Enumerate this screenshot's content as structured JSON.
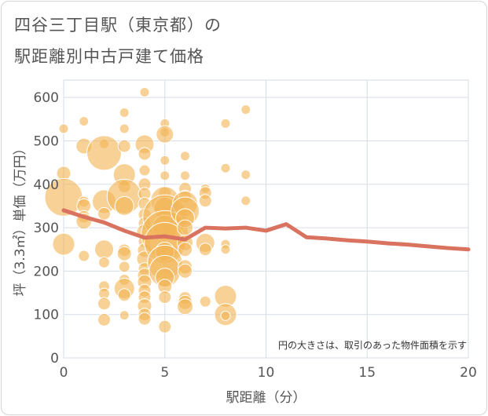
{
  "title": {
    "line1": "四谷三丁目駅（東京都）の",
    "line2": "駅距離別中古戸建て価格"
  },
  "chart_data": {
    "type": "scatter",
    "xlabel": "駅距離（分）",
    "ylabel": "坪（3.3㎡）単価（万円）",
    "xlim": [
      0,
      20
    ],
    "ylim": [
      0,
      640
    ],
    "x_ticks": [
      0,
      5,
      10,
      15,
      20
    ],
    "y_ticks": [
      0,
      100,
      200,
      300,
      400,
      500,
      600
    ],
    "grid": true,
    "annotation": "円の大きさは、取引のあった物件面積を示す",
    "colors": {
      "bubble": "#f2b555",
      "line": "#d9725e",
      "grid": "#d6dde6"
    },
    "bubbles": [
      {
        "x": 0,
        "y": 528,
        "s": 6
      },
      {
        "x": 0,
        "y": 425,
        "s": 9
      },
      {
        "x": 0,
        "y": 370,
        "s": 24
      },
      {
        "x": 0,
        "y": 262,
        "s": 14
      },
      {
        "x": 1,
        "y": 545,
        "s": 6
      },
      {
        "x": 1,
        "y": 488,
        "s": 10
      },
      {
        "x": 1,
        "y": 360,
        "s": 7
      },
      {
        "x": 1,
        "y": 350,
        "s": 9
      },
      {
        "x": 1,
        "y": 325,
        "s": 8
      },
      {
        "x": 1,
        "y": 315,
        "s": 10
      },
      {
        "x": 1,
        "y": 235,
        "s": 7
      },
      {
        "x": 2,
        "y": 493,
        "s": 6
      },
      {
        "x": 2,
        "y": 472,
        "s": 22
      },
      {
        "x": 2,
        "y": 360,
        "s": 15
      },
      {
        "x": 2,
        "y": 332,
        "s": 8
      },
      {
        "x": 2,
        "y": 250,
        "s": 12
      },
      {
        "x": 2,
        "y": 220,
        "s": 7
      },
      {
        "x": 2,
        "y": 165,
        "s": 7
      },
      {
        "x": 2,
        "y": 148,
        "s": 7
      },
      {
        "x": 2,
        "y": 125,
        "s": 8
      },
      {
        "x": 2,
        "y": 88,
        "s": 8
      },
      {
        "x": 3,
        "y": 565,
        "s": 6
      },
      {
        "x": 3,
        "y": 528,
        "s": 6
      },
      {
        "x": 3,
        "y": 488,
        "s": 8
      },
      {
        "x": 3,
        "y": 422,
        "s": 14
      },
      {
        "x": 3,
        "y": 395,
        "s": 8
      },
      {
        "x": 3,
        "y": 372,
        "s": 22
      },
      {
        "x": 3,
        "y": 350,
        "s": 12
      },
      {
        "x": 3,
        "y": 248,
        "s": 8
      },
      {
        "x": 3,
        "y": 240,
        "s": 9
      },
      {
        "x": 3,
        "y": 210,
        "s": 7
      },
      {
        "x": 3,
        "y": 180,
        "s": 7
      },
      {
        "x": 3,
        "y": 160,
        "s": 13
      },
      {
        "x": 3,
        "y": 145,
        "s": 8
      },
      {
        "x": 3,
        "y": 98,
        "s": 6
      },
      {
        "x": 4,
        "y": 612,
        "s": 6
      },
      {
        "x": 4,
        "y": 492,
        "s": 12
      },
      {
        "x": 4,
        "y": 470,
        "s": 8
      },
      {
        "x": 4,
        "y": 432,
        "s": 7
      },
      {
        "x": 4,
        "y": 400,
        "s": 8
      },
      {
        "x": 4,
        "y": 378,
        "s": 8
      },
      {
        "x": 4,
        "y": 355,
        "s": 8
      },
      {
        "x": 4,
        "y": 330,
        "s": 8
      },
      {
        "x": 4,
        "y": 310,
        "s": 8
      },
      {
        "x": 4,
        "y": 290,
        "s": 10
      },
      {
        "x": 4,
        "y": 268,
        "s": 8
      },
      {
        "x": 4,
        "y": 248,
        "s": 9
      },
      {
        "x": 4,
        "y": 228,
        "s": 10
      },
      {
        "x": 4,
        "y": 205,
        "s": 8
      },
      {
        "x": 4,
        "y": 190,
        "s": 9
      },
      {
        "x": 4,
        "y": 175,
        "s": 9
      },
      {
        "x": 4,
        "y": 155,
        "s": 8
      },
      {
        "x": 4,
        "y": 140,
        "s": 8
      },
      {
        "x": 4,
        "y": 120,
        "s": 9
      },
      {
        "x": 4,
        "y": 100,
        "s": 8
      },
      {
        "x": 4,
        "y": 90,
        "s": 8
      },
      {
        "x": 5,
        "y": 540,
        "s": 6
      },
      {
        "x": 5,
        "y": 520,
        "s": 6
      },
      {
        "x": 5,
        "y": 515,
        "s": 11
      },
      {
        "x": 5,
        "y": 455,
        "s": 6
      },
      {
        "x": 5,
        "y": 420,
        "s": 6
      },
      {
        "x": 5,
        "y": 380,
        "s": 8
      },
      {
        "x": 5,
        "y": 362,
        "s": 18
      },
      {
        "x": 5,
        "y": 345,
        "s": 14
      },
      {
        "x": 5,
        "y": 325,
        "s": 28
      },
      {
        "x": 5,
        "y": 300,
        "s": 16
      },
      {
        "x": 5,
        "y": 285,
        "s": 30
      },
      {
        "x": 5,
        "y": 265,
        "s": 26
      },
      {
        "x": 5,
        "y": 245,
        "s": 12
      },
      {
        "x": 5,
        "y": 220,
        "s": 22
      },
      {
        "x": 5,
        "y": 200,
        "s": 20
      },
      {
        "x": 5,
        "y": 185,
        "s": 12
      },
      {
        "x": 5,
        "y": 165,
        "s": 9
      },
      {
        "x": 5,
        "y": 140,
        "s": 8
      },
      {
        "x": 5,
        "y": 72,
        "s": 8
      },
      {
        "x": 6,
        "y": 465,
        "s": 6
      },
      {
        "x": 6,
        "y": 420,
        "s": 6
      },
      {
        "x": 6,
        "y": 390,
        "s": 8
      },
      {
        "x": 6,
        "y": 372,
        "s": 8
      },
      {
        "x": 6,
        "y": 355,
        "s": 16
      },
      {
        "x": 6,
        "y": 338,
        "s": 18
      },
      {
        "x": 6,
        "y": 322,
        "s": 12
      },
      {
        "x": 6,
        "y": 300,
        "s": 10
      },
      {
        "x": 6,
        "y": 265,
        "s": 10
      },
      {
        "x": 6,
        "y": 250,
        "s": 9
      },
      {
        "x": 6,
        "y": 210,
        "s": 9
      },
      {
        "x": 6,
        "y": 200,
        "s": 9
      },
      {
        "x": 6,
        "y": 138,
        "s": 8
      },
      {
        "x": 6,
        "y": 128,
        "s": 9
      },
      {
        "x": 6,
        "y": 118,
        "s": 10
      },
      {
        "x": 7,
        "y": 390,
        "s": 6
      },
      {
        "x": 7,
        "y": 380,
        "s": 8
      },
      {
        "x": 7,
        "y": 362,
        "s": 8
      },
      {
        "x": 7,
        "y": 265,
        "s": 12
      },
      {
        "x": 7,
        "y": 250,
        "s": 8
      },
      {
        "x": 7,
        "y": 130,
        "s": 7
      },
      {
        "x": 8,
        "y": 540,
        "s": 6
      },
      {
        "x": 8,
        "y": 437,
        "s": 6
      },
      {
        "x": 8,
        "y": 262,
        "s": 6
      },
      {
        "x": 8,
        "y": 250,
        "s": 6
      },
      {
        "x": 8,
        "y": 142,
        "s": 14
      },
      {
        "x": 8,
        "y": 100,
        "s": 14
      },
      {
        "x": 8,
        "y": 97,
        "s": 6
      },
      {
        "x": 9,
        "y": 572,
        "s": 6
      },
      {
        "x": 9,
        "y": 422,
        "s": 6
      },
      {
        "x": 9,
        "y": 362,
        "s": 6
      }
    ],
    "line": {
      "x": [
        0,
        1,
        2,
        3,
        4,
        5,
        6,
        7,
        8,
        9,
        10,
        11,
        12,
        13,
        14,
        15,
        16,
        17,
        18,
        19,
        20
      ],
      "y": [
        340,
        325,
        312,
        293,
        277,
        280,
        273,
        300,
        298,
        300,
        293,
        308,
        278,
        275,
        271,
        268,
        264,
        261,
        257,
        253,
        250
      ]
    }
  }
}
